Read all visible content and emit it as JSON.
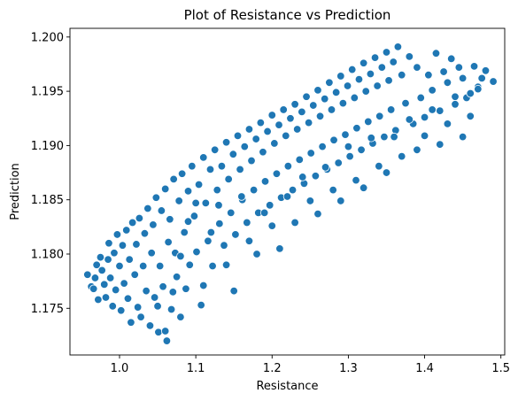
{
  "chart_data": {
    "type": "scatter",
    "title": "Plot of Resistance vs Prediction",
    "xlabel": "Resistance",
    "ylabel": "Prediction",
    "xlim": [
      0.935,
      1.505
    ],
    "ylim": [
      1.1707,
      1.2008
    ],
    "x_ticks": [
      "1.0",
      "1.1",
      "1.2",
      "1.3",
      "1.4",
      "1.5"
    ],
    "y_ticks": [
      "1.175",
      "1.180",
      "1.185",
      "1.190",
      "1.195",
      "1.200"
    ],
    "marker_color": "#1f77b4",
    "marker_edge_color": "#ffffff",
    "grid": false,
    "legend": "none",
    "points": [
      [
        0.958,
        1.1781
      ],
      [
        0.963,
        1.177
      ],
      [
        0.966,
        1.1768
      ],
      [
        0.968,
        1.1778
      ],
      [
        0.97,
        1.179
      ],
      [
        0.972,
        1.1758
      ],
      [
        0.975,
        1.1797
      ],
      [
        0.977,
        1.1785
      ],
      [
        0.98,
        1.1772
      ],
      [
        0.982,
        1.176
      ],
      [
        0.985,
        1.1795
      ],
      [
        0.986,
        1.181
      ],
      [
        0.988,
        1.1778
      ],
      [
        0.991,
        1.1752
      ],
      [
        0.993,
        1.1801
      ],
      [
        0.995,
        1.1767
      ],
      [
        0.997,
        1.1818
      ],
      [
        1.0,
        1.1789
      ],
      [
        1.002,
        1.1748
      ],
      [
        1.004,
        1.1808
      ],
      [
        1.006,
        1.1773
      ],
      [
        1.009,
        1.1822
      ],
      [
        1.011,
        1.1759
      ],
      [
        1.013,
        1.1795
      ],
      [
        1.015,
        1.1737
      ],
      [
        1.017,
        1.1829
      ],
      [
        1.02,
        1.1781
      ],
      [
        1.022,
        1.1809
      ],
      [
        1.024,
        1.1751
      ],
      [
        1.026,
        1.1833
      ],
      [
        1.028,
        1.1742
      ],
      [
        1.031,
        1.1789
      ],
      [
        1.033,
        1.1819
      ],
      [
        1.035,
        1.1766
      ],
      [
        1.037,
        1.1842
      ],
      [
        1.04,
        1.1734
      ],
      [
        1.042,
        1.1801
      ],
      [
        1.044,
        1.1827
      ],
      [
        1.046,
        1.176
      ],
      [
        1.048,
        1.1852
      ],
      [
        1.051,
        1.1728
      ],
      [
        1.053,
        1.1789
      ],
      [
        1.055,
        1.184
      ],
      [
        1.057,
        1.177
      ],
      [
        1.06,
        1.186
      ],
      [
        1.062,
        1.172
      ],
      [
        1.064,
        1.1811
      ],
      [
        1.066,
        1.1832
      ],
      [
        1.068,
        1.1749
      ],
      [
        1.071,
        1.1869
      ],
      [
        1.073,
        1.1801
      ],
      [
        1.075,
        1.1779
      ],
      [
        1.078,
        1.1849
      ],
      [
        1.08,
        1.1742
      ],
      [
        1.082,
        1.1874
      ],
      [
        1.085,
        1.182
      ],
      [
        1.087,
        1.1768
      ],
      [
        1.09,
        1.1858
      ],
      [
        1.092,
        1.179
      ],
      [
        1.095,
        1.1881
      ],
      [
        1.098,
        1.1835
      ],
      [
        1.101,
        1.1802
      ],
      [
        1.104,
        1.1864
      ],
      [
        1.107,
        1.1753
      ],
      [
        1.11,
        1.1889
      ],
      [
        1.113,
        1.1847
      ],
      [
        1.116,
        1.1812
      ],
      [
        1.119,
        1.1878
      ],
      [
        1.122,
        1.1789
      ],
      [
        1.125,
        1.1896
      ],
      [
        1.128,
        1.1859
      ],
      [
        1.131,
        1.1828
      ],
      [
        1.134,
        1.1881
      ],
      [
        1.137,
        1.1808
      ],
      [
        1.14,
        1.1903
      ],
      [
        1.143,
        1.1869
      ],
      [
        1.146,
        1.1838
      ],
      [
        1.149,
        1.1892
      ],
      [
        1.152,
        1.1818
      ],
      [
        1.155,
        1.1909
      ],
      [
        1.158,
        1.1878
      ],
      [
        1.161,
        1.185
      ],
      [
        1.164,
        1.1899
      ],
      [
        1.167,
        1.1829
      ],
      [
        1.17,
        1.1915
      ],
      [
        1.173,
        1.1886
      ],
      [
        1.176,
        1.1859
      ],
      [
        1.179,
        1.1906
      ],
      [
        1.182,
        1.1838
      ],
      [
        1.185,
        1.1921
      ],
      [
        1.188,
        1.1894
      ],
      [
        1.191,
        1.1867
      ],
      [
        1.194,
        1.1913
      ],
      [
        1.197,
        1.1845
      ],
      [
        1.2,
        1.1928
      ],
      [
        1.203,
        1.1902
      ],
      [
        1.206,
        1.1874
      ],
      [
        1.209,
        1.1919
      ],
      [
        1.212,
        1.1852
      ],
      [
        1.215,
        1.1933
      ],
      [
        1.218,
        1.1909
      ],
      [
        1.221,
        1.1881
      ],
      [
        1.224,
        1.1925
      ],
      [
        1.227,
        1.1859
      ],
      [
        1.23,
        1.1938
      ],
      [
        1.233,
        1.1915
      ],
      [
        1.236,
        1.1887
      ],
      [
        1.239,
        1.1931
      ],
      [
        1.242,
        1.1865
      ],
      [
        1.245,
        1.1945
      ],
      [
        1.248,
        1.1921
      ],
      [
        1.251,
        1.1893
      ],
      [
        1.254,
        1.1937
      ],
      [
        1.257,
        1.1872
      ],
      [
        1.26,
        1.1951
      ],
      [
        1.263,
        1.1927
      ],
      [
        1.266,
        1.1899
      ],
      [
        1.269,
        1.1943
      ],
      [
        1.272,
        1.1878
      ],
      [
        1.275,
        1.1958
      ],
      [
        1.278,
        1.1933
      ],
      [
        1.281,
        1.1905
      ],
      [
        1.284,
        1.1949
      ],
      [
        1.287,
        1.1884
      ],
      [
        1.29,
        1.1964
      ],
      [
        1.293,
        1.1939
      ],
      [
        1.296,
        1.191
      ],
      [
        1.299,
        1.1955
      ],
      [
        1.302,
        1.189
      ],
      [
        1.305,
        1.197
      ],
      [
        1.308,
        1.1944
      ],
      [
        1.311,
        1.1916
      ],
      [
        1.314,
        1.1961
      ],
      [
        1.317,
        1.1896
      ],
      [
        1.32,
        1.1976
      ],
      [
        1.323,
        1.195
      ],
      [
        1.326,
        1.1922
      ],
      [
        1.329,
        1.1966
      ],
      [
        1.332,
        1.1902
      ],
      [
        1.335,
        1.1981
      ],
      [
        1.338,
        1.1955
      ],
      [
        1.341,
        1.1927
      ],
      [
        1.344,
        1.1972
      ],
      [
        1.347,
        1.1908
      ],
      [
        1.35,
        1.1986
      ],
      [
        1.353,
        1.196
      ],
      [
        1.356,
        1.1933
      ],
      [
        1.359,
        1.1977
      ],
      [
        1.362,
        1.1914
      ],
      [
        1.365,
        1.1991
      ],
      [
        1.37,
        1.1965
      ],
      [
        1.375,
        1.1939
      ],
      [
        1.38,
        1.1982
      ],
      [
        1.385,
        1.192
      ],
      [
        1.39,
        1.1972
      ],
      [
        1.395,
        1.1944
      ],
      [
        1.4,
        1.1926
      ],
      [
        1.405,
        1.1965
      ],
      [
        1.41,
        1.1951
      ],
      [
        1.415,
        1.1985
      ],
      [
        1.42,
        1.1932
      ],
      [
        1.425,
        1.1968
      ],
      [
        1.43,
        1.1958
      ],
      [
        1.435,
        1.198
      ],
      [
        1.44,
        1.1938
      ],
      [
        1.445,
        1.1972
      ],
      [
        1.45,
        1.1962
      ],
      [
        1.455,
        1.1944
      ],
      [
        1.46,
        1.1948
      ],
      [
        1.465,
        1.1973
      ],
      [
        1.47,
        1.1954
      ],
      [
        1.475,
        1.1962
      ],
      [
        1.48,
        1.1969
      ],
      [
        1.49,
        1.1959
      ],
      [
        1.05,
        1.1752
      ],
      [
        1.06,
        1.1729
      ],
      [
        1.07,
        1.1765
      ],
      [
        1.08,
        1.1798
      ],
      [
        1.09,
        1.183
      ],
      [
        1.1,
        1.1847
      ],
      [
        1.11,
        1.1771
      ],
      [
        1.12,
        1.182
      ],
      [
        1.13,
        1.1845
      ],
      [
        1.14,
        1.179
      ],
      [
        1.15,
        1.1766
      ],
      [
        1.16,
        1.1853
      ],
      [
        1.17,
        1.1812
      ],
      [
        1.18,
        1.18
      ],
      [
        1.19,
        1.1838
      ],
      [
        1.2,
        1.1826
      ],
      [
        1.21,
        1.1805
      ],
      [
        1.22,
        1.1853
      ],
      [
        1.23,
        1.1829
      ],
      [
        1.24,
        1.1871
      ],
      [
        1.25,
        1.1849
      ],
      [
        1.26,
        1.1837
      ],
      [
        1.27,
        1.188
      ],
      [
        1.28,
        1.1859
      ],
      [
        1.29,
        1.1849
      ],
      [
        1.3,
        1.1899
      ],
      [
        1.31,
        1.1868
      ],
      [
        1.32,
        1.1861
      ],
      [
        1.33,
        1.1907
      ],
      [
        1.34,
        1.1881
      ],
      [
        1.35,
        1.1875
      ],
      [
        1.36,
        1.1908
      ],
      [
        1.37,
        1.189
      ],
      [
        1.38,
        1.1924
      ],
      [
        1.39,
        1.1896
      ],
      [
        1.4,
        1.1909
      ],
      [
        1.41,
        1.1933
      ],
      [
        1.42,
        1.1901
      ],
      [
        1.43,
        1.192
      ],
      [
        1.44,
        1.1945
      ],
      [
        1.45,
        1.1908
      ],
      [
        1.46,
        1.1927
      ],
      [
        1.47,
        1.1952
      ]
    ]
  }
}
